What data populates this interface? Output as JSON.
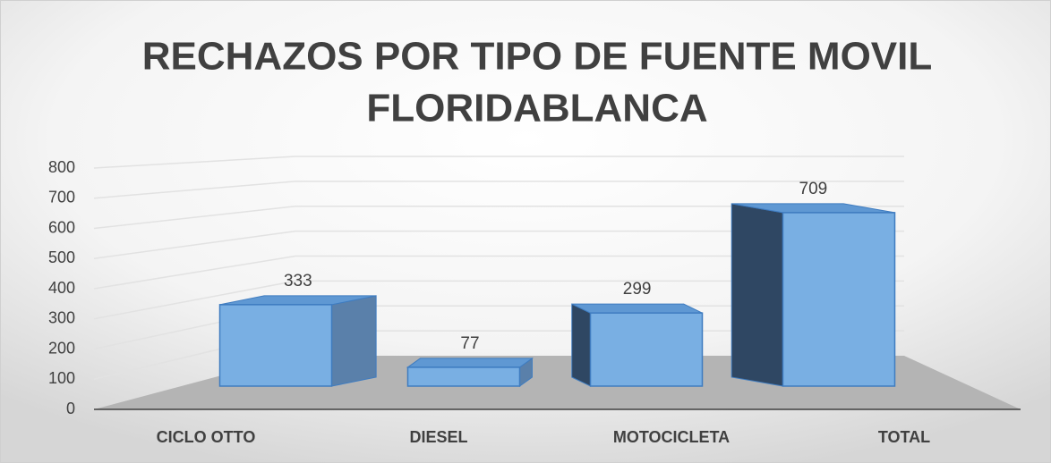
{
  "chart_data": {
    "type": "bar3d",
    "title": [
      "RECHAZOS POR TIPO DE FUENTE MOVIL",
      "FLORIDABLANCA"
    ],
    "categories": [
      "CICLO OTTO",
      "DIESEL",
      "MOTOCICLETA",
      "TOTAL"
    ],
    "values": [
      333,
      77,
      299,
      709
    ],
    "color": "#79afe3",
    "ylim": [
      0,
      800
    ],
    "yticks": [
      0,
      100,
      200,
      300,
      400,
      500,
      600,
      700,
      800
    ],
    "grid": true
  }
}
